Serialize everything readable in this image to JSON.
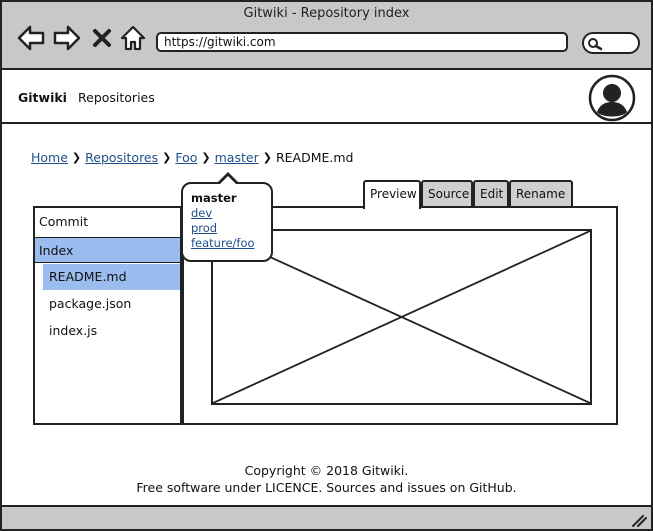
{
  "window": {
    "title": "Gitwiki - Repository index",
    "url": "https://gitwiki.com"
  },
  "toolbar_icons": [
    "back-icon",
    "forward-icon",
    "close-icon",
    "home-icon",
    "search-icon"
  ],
  "header": {
    "brand": "Gitwiki",
    "nav_repositories": "Repositories"
  },
  "breadcrumb": {
    "home": "Home",
    "repositories": "Repositores",
    "repo": "Foo",
    "branch": "master",
    "file": "README.md"
  },
  "branch_dropdown": {
    "current": "master",
    "options": [
      "dev",
      "prod",
      "feature/foo"
    ]
  },
  "tabs": [
    "Preview",
    "Source",
    "Edit",
    "Rename"
  ],
  "active_tab": "Preview",
  "sidebar": {
    "commit": "Commit",
    "index": "Index",
    "files": [
      "README.md",
      "package.json",
      "index.js"
    ],
    "selected_file": "README.md"
  },
  "footer": {
    "line1": "Copyright © 2018 Gitwiki.",
    "line2": "Free software under LICENCE. Sources and issues on GitHub."
  },
  "colors": {
    "chrome": "#c8c8c8",
    "selection": "#9bbcee",
    "link": "#1f4f8a",
    "tab_inactive": "#cfcfcf"
  }
}
